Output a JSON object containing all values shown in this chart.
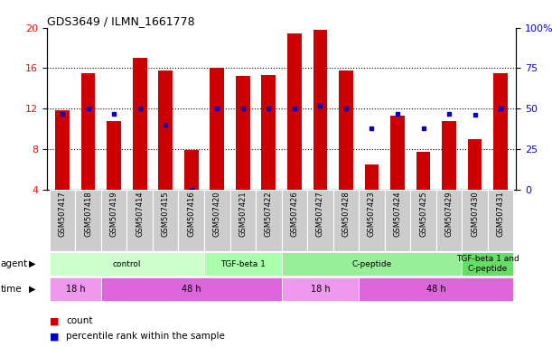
{
  "title": "GDS3649 / ILMN_1661778",
  "samples": [
    "GSM507417",
    "GSM507418",
    "GSM507419",
    "GSM507414",
    "GSM507415",
    "GSM507416",
    "GSM507420",
    "GSM507421",
    "GSM507422",
    "GSM507426",
    "GSM507427",
    "GSM507428",
    "GSM507423",
    "GSM507424",
    "GSM507425",
    "GSM507429",
    "GSM507430",
    "GSM507431"
  ],
  "count_values": [
    11.8,
    15.5,
    10.8,
    17.0,
    15.8,
    7.9,
    16.0,
    15.2,
    15.3,
    19.4,
    19.8,
    15.8,
    6.5,
    11.3,
    7.7,
    10.8,
    9.0,
    15.5
  ],
  "percentile_values": [
    47,
    50,
    47,
    50,
    40,
    0,
    50,
    50,
    50,
    50,
    52,
    50,
    38,
    47,
    38,
    47,
    46,
    50
  ],
  "ylim_left": [
    4,
    20
  ],
  "ylim_right": [
    0,
    100
  ],
  "yticks_left": [
    4,
    8,
    12,
    16,
    20
  ],
  "yticks_right": [
    0,
    25,
    50,
    75,
    100
  ],
  "bar_color": "#CC0000",
  "dot_color": "#0000CC",
  "agent_groups": [
    {
      "label": "control",
      "start": 0,
      "end": 5,
      "color": "#CCFFCC"
    },
    {
      "label": "TGF-beta 1",
      "start": 6,
      "end": 8,
      "color": "#AAFFAA"
    },
    {
      "label": "C-peptide",
      "start": 9,
      "end": 15,
      "color": "#99EE99"
    },
    {
      "label": "TGF-beta 1 and\nC-peptide",
      "start": 16,
      "end": 17,
      "color": "#66DD66"
    }
  ],
  "time_groups": [
    {
      "label": "18 h",
      "start": 0,
      "end": 1,
      "color": "#EE99EE"
    },
    {
      "label": "48 h",
      "start": 2,
      "end": 8,
      "color": "#DD66DD"
    },
    {
      "label": "18 h",
      "start": 9,
      "end": 11,
      "color": "#EE99EE"
    },
    {
      "label": "48 h",
      "start": 12,
      "end": 17,
      "color": "#DD66DD"
    }
  ],
  "xticklabel_bg": "#CCCCCC",
  "count_legend": "count",
  "percentile_legend": "percentile rank within the sample",
  "dotted_gridlines": [
    8,
    12,
    16
  ]
}
